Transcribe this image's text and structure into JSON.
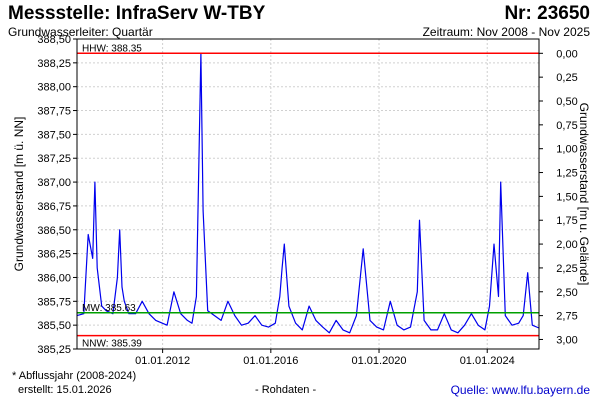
{
  "header": {
    "title": "Messstelle: InfraServ W-TBY",
    "number": "Nr: 23650",
    "aquifer": "Grundwasserleiter: Quartär",
    "period": "Zeitraum: Nov 2008 - Nov 2025"
  },
  "footer": {
    "footnote": "* Abflussjahr (2008-2024)",
    "created": "erstellt:  15.01.2026",
    "raw": "- Rohdaten -",
    "source": "Quelle: www.lfu.bayern.de"
  },
  "colors": {
    "series": "#0000ee",
    "hhw_nnw": "#ff0000",
    "mw": "#00a000",
    "grid": "#d0d0d0"
  },
  "chart_data": {
    "type": "line",
    "ylabel": "Grundwasserstand [m ü. NN]",
    "y2label": "Grundwasserstand [m u. Gelände]",
    "ylim": [
      385.25,
      388.5
    ],
    "yticks": [
      385.25,
      385.5,
      385.75,
      386.0,
      386.25,
      386.5,
      386.75,
      387.0,
      387.25,
      387.5,
      387.75,
      388.0,
      388.25,
      388.5
    ],
    "ytick_labels": [
      "385,25",
      "385,50",
      "385,75",
      "386,00",
      "386,25",
      "386,50",
      "386,75",
      "387,00",
      "387,25",
      "387,50",
      "387,75",
      "388,00",
      "388,25",
      "388,50"
    ],
    "y2ticks": [
      0.0,
      0.25,
      0.5,
      0.75,
      1.0,
      1.25,
      1.5,
      1.75,
      2.0,
      2.25,
      2.5,
      2.75,
      3.0
    ],
    "y2tick_labels": [
      "0,00",
      "0,25",
      "0,50",
      "0,75",
      "1,00",
      "1,25",
      "1,50",
      "1,75",
      "2,00",
      "2,25",
      "2,50",
      "2,75",
      "3,00"
    ],
    "y2_zero_at": 388.35,
    "xlim": [
      "2008-11-01",
      "2025-11-30"
    ],
    "xticks": [
      "2012-01-01",
      "2016-01-01",
      "2020-01-01",
      "2024-01-01"
    ],
    "xtick_labels": [
      "01.01.2012",
      "01.01.2016",
      "01.01.2020",
      "01.01.2024"
    ],
    "grid": true,
    "reference_lines": [
      {
        "label": "HHW: 388.35",
        "value": 388.35,
        "color": "#ff0000"
      },
      {
        "label": "MW: 385.63",
        "value": 385.63,
        "color": "#00a000"
      },
      {
        "label": "NNW: 385.39",
        "value": 385.39,
        "color": "#ff0000"
      }
    ],
    "series": [
      {
        "x": [
          "2008-11-01",
          "2009-02-01",
          "2009-04-01",
          "2009-06-01",
          "2009-07-01",
          "2009-08-01",
          "2009-10-01",
          "2009-12-01",
          "2010-03-01",
          "2010-05-01",
          "2010-06-01",
          "2010-07-01",
          "2010-08-01",
          "2010-10-01",
          "2011-01-01",
          "2011-04-01",
          "2011-07-01",
          "2011-10-01",
          "2012-03-01",
          "2012-06-01",
          "2012-09-01",
          "2012-12-01",
          "2013-02-01",
          "2013-04-01",
          "2013-06-01",
          "2013-07-01",
          "2013-09-01",
          "2013-12-01",
          "2014-03-01",
          "2014-06-01",
          "2014-09-01",
          "2014-12-01",
          "2015-03-01",
          "2015-06-01",
          "2015-09-01",
          "2015-12-01",
          "2016-03-01",
          "2016-05-01",
          "2016-06-01",
          "2016-07-01",
          "2016-09-01",
          "2016-12-01",
          "2017-03-01",
          "2017-06-01",
          "2017-09-01",
          "2017-12-01",
          "2018-03-01",
          "2018-06-01",
          "2018-09-01",
          "2018-12-01",
          "2019-03-01",
          "2019-06-01",
          "2019-09-01",
          "2019-12-01",
          "2020-03-01",
          "2020-06-01",
          "2020-09-01",
          "2020-12-01",
          "2021-03-01",
          "2021-06-01",
          "2021-07-01",
          "2021-09-01",
          "2021-12-01",
          "2022-03-01",
          "2022-06-01",
          "2022-09-01",
          "2022-12-01",
          "2023-03-01",
          "2023-06-01",
          "2023-09-01",
          "2023-12-01",
          "2024-02-01",
          "2024-04-01",
          "2024-06-01",
          "2024-07-01",
          "2024-09-01",
          "2024-12-01",
          "2025-03-01",
          "2025-05-01",
          "2025-07-01",
          "2025-09-01",
          "2025-11-30"
        ],
        "y": [
          385.6,
          385.62,
          386.45,
          386.2,
          387.0,
          386.1,
          385.7,
          385.65,
          385.62,
          386.0,
          386.5,
          385.9,
          385.75,
          385.62,
          385.62,
          385.75,
          385.62,
          385.55,
          385.5,
          385.85,
          385.62,
          385.55,
          385.52,
          385.8,
          388.35,
          386.7,
          385.65,
          385.6,
          385.55,
          385.75,
          385.6,
          385.5,
          385.52,
          385.6,
          385.5,
          385.48,
          385.52,
          385.8,
          386.1,
          386.35,
          385.7,
          385.52,
          385.45,
          385.7,
          385.55,
          385.48,
          385.42,
          385.55,
          385.45,
          385.42,
          385.6,
          386.3,
          385.55,
          385.48,
          385.45,
          385.75,
          385.5,
          385.45,
          385.48,
          385.85,
          386.6,
          385.55,
          385.45,
          385.45,
          385.62,
          385.45,
          385.42,
          385.5,
          385.62,
          385.5,
          385.45,
          385.7,
          386.35,
          385.8,
          387.0,
          385.6,
          385.5,
          385.52,
          385.6,
          386.05,
          385.5,
          385.47
        ]
      }
    ]
  }
}
